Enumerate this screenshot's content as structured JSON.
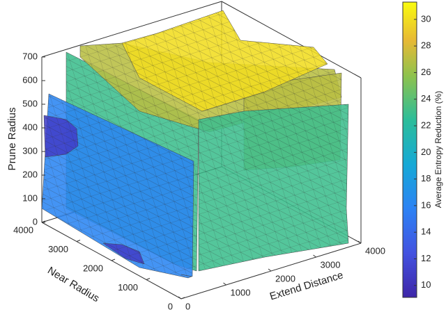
{
  "chart_data": {
    "type": "isosurface",
    "xlabel": "Extend Distance",
    "ylabel": "Near Radius",
    "zlabel": "Prune Radius",
    "colorbar_label": "Average Entropy Reduction (%)",
    "xlim": [
      0,
      4000
    ],
    "xticks": [
      0,
      1000,
      2000,
      3000,
      4000
    ],
    "ylim": [
      0,
      4000
    ],
    "yticks": [
      0,
      1000,
      2000,
      3000,
      4000
    ],
    "zlim": [
      0,
      700
    ],
    "zticks": [
      0,
      100,
      200,
      300,
      400,
      500,
      600,
      700
    ],
    "clim": [
      9.1,
      31.3
    ],
    "cticks": [
      10,
      12,
      14,
      16,
      18,
      20,
      22,
      24,
      26,
      28,
      30
    ],
    "isosurfaces": [
      11,
      16,
      23,
      27,
      30
    ]
  }
}
